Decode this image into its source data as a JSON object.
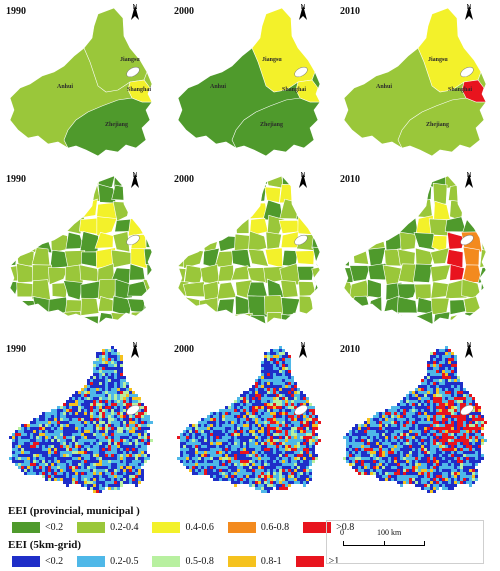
{
  "panels": {
    "row1": [
      {
        "year": "1990",
        "labels": {
          "jiangsu": "Jiangsu",
          "anhui": "Anhui",
          "shanghai": "Shanghai",
          "zhejiang": "Zhejiang"
        }
      },
      {
        "year": "2000",
        "labels": {
          "jiangsu": "Jiangsu",
          "anhui": "Anhui",
          "shanghai": "Shanghai",
          "zhejiang": "Zhejiang"
        }
      },
      {
        "year": "2010",
        "labels": {
          "jiangsu": "Jiangsu",
          "anhui": "Anhui",
          "shanghai": "Shanghai",
          "zhejiang": "Zhejiang"
        }
      }
    ],
    "row2": [
      {
        "year": "1990"
      },
      {
        "year": "2000"
      },
      {
        "year": "2010"
      }
    ],
    "row3": [
      {
        "year": "1990"
      },
      {
        "year": "2000"
      },
      {
        "year": "2010"
      }
    ]
  },
  "north_label": "N",
  "legend_provincial": {
    "title": "EEI (provincial, municipal )",
    "items": [
      {
        "label": "<0.2",
        "color": "#4f9a2c"
      },
      {
        "label": "0.2-0.4",
        "color": "#9ac73a"
      },
      {
        "label": "0.4-0.6",
        "color": "#f3f12a"
      },
      {
        "label": "0.6-0.8",
        "color": "#f38a1e"
      },
      {
        "label": ">0.8",
        "color": "#e8141e"
      }
    ]
  },
  "legend_grid": {
    "title": "EEI (5km-grid)",
    "items": [
      {
        "label": "<0.2",
        "color": "#1f2ec8"
      },
      {
        "label": "0.2-0.5",
        "color": "#4fb8e8"
      },
      {
        "label": "0.5-0.8",
        "color": "#b8f0a0"
      },
      {
        "label": "0.8-1",
        "color": "#f5c21e"
      },
      {
        "label": ">1",
        "color": "#e8141e"
      }
    ]
  },
  "scalebar": {
    "zero": "0",
    "label": "100 km"
  }
}
